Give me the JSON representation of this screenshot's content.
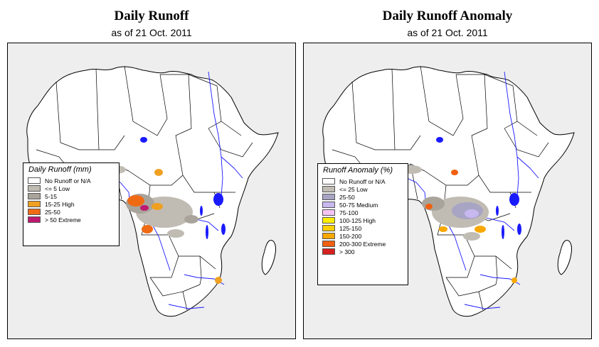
{
  "left": {
    "title": "Daily Runoff",
    "subtitle": "as of  21 Oct. 2011",
    "legend": {
      "title": "Daily Runoff (mm)",
      "items": [
        {
          "label": "No Runoff or N/A",
          "color": "#ffffff"
        },
        {
          "label": "<= 5  Low",
          "color": "#c0bcb4"
        },
        {
          "label": "5-15",
          "color": "#a9a49b"
        },
        {
          "label": "15-25 High",
          "color": "#f0a020"
        },
        {
          "label": "25-50",
          "color": "#f06a14"
        },
        {
          "label": "> 50  Extreme",
          "color": "#c01870"
        }
      ]
    }
  },
  "right": {
    "title": "Daily Runoff Anomaly",
    "subtitle": "as of  21 Oct. 2011",
    "legend": {
      "title": "Runoff Anomaly (%)",
      "items": [
        {
          "label": "No Runoff or N/A",
          "color": "#ffffff"
        },
        {
          "label": "<= 25     Low",
          "color": "#c0bcb4"
        },
        {
          "label": "25-50",
          "color": "#a8a4c4"
        },
        {
          "label": "50-75   Medium",
          "color": "#c8b8f0"
        },
        {
          "label": "75-100",
          "color": "#f4c4f4"
        },
        {
          "label": "100-125  High",
          "color": "#ffee00"
        },
        {
          "label": "125-150",
          "color": "#fcd000"
        },
        {
          "label": "150-200",
          "color": "#f8a800"
        },
        {
          "label": "200-300  Extreme",
          "color": "#f06010"
        },
        {
          "label": "> 300",
          "color": "#d82020"
        }
      ]
    }
  },
  "colors": {
    "water": "#1a1aff",
    "land": "#ffffff",
    "ocean": "#eeeeee",
    "border": "#000000"
  }
}
